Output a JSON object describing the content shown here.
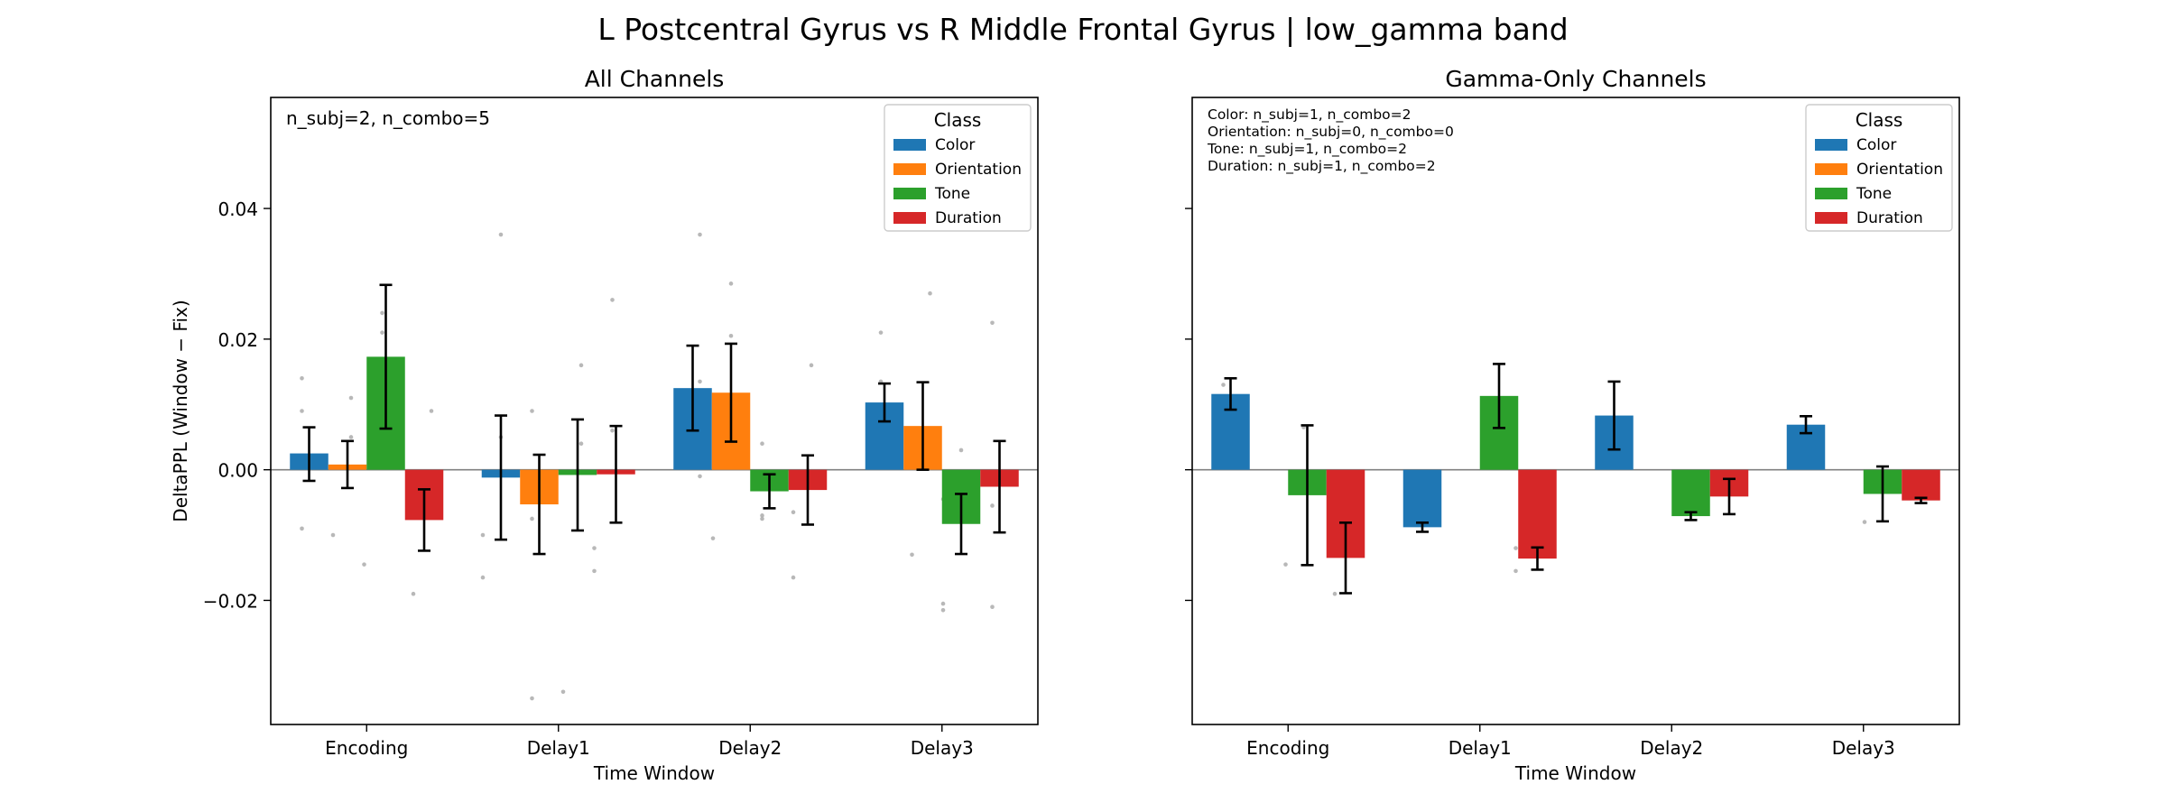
{
  "figure": {
    "suptitle": "L Postcentral Gyrus vs R Middle Frontal Gyrus  |  low_gamma band"
  },
  "colors": {
    "Color": "#1f77b4",
    "Orientation": "#ff7f0e",
    "Tone": "#2ca02c",
    "Duration": "#d62728",
    "scatter": "#b0b0b0",
    "zero_line": "#808080"
  },
  "chart_data": [
    {
      "type": "bar",
      "title": "All Channels",
      "xlabel": "Time Window",
      "ylabel": "DeltaPPL (Window − Fix)",
      "ylim": [
        -0.039,
        0.057
      ],
      "yticks": [
        -0.02,
        0.0,
        0.02,
        0.04
      ],
      "ytick_labels": [
        "−0.02",
        "0.00",
        "0.02",
        "0.04"
      ],
      "show_ytick_labels": true,
      "categories": [
        "Encoding",
        "Delay1",
        "Delay2",
        "Delay3"
      ],
      "legend": {
        "title": "Class",
        "placement": "upper right"
      },
      "annotation": [
        "n_subj=2, n_combo=5"
      ],
      "annotation_size": "large",
      "series": [
        {
          "name": "Color",
          "values": [
            0.0025,
            -0.0012,
            0.0125,
            0.0103
          ],
          "err_low": [
            -0.0017,
            -0.0107,
            0.006,
            0.0074
          ],
          "err_high": [
            0.0065,
            0.0083,
            0.019,
            0.0132
          ]
        },
        {
          "name": "Orientation",
          "values": [
            0.0008,
            -0.0053,
            0.0118,
            0.0067
          ],
          "err_low": [
            -0.0028,
            -0.0129,
            0.0043,
            0.0
          ],
          "err_high": [
            0.0044,
            0.0023,
            0.0193,
            0.0134
          ]
        },
        {
          "name": "Tone",
          "values": [
            0.0173,
            -0.0008,
            -0.0033,
            -0.0083
          ],
          "err_low": [
            0.0063,
            -0.0093,
            -0.0059,
            -0.0129
          ],
          "err_high": [
            0.0283,
            0.0077,
            -0.0007,
            -0.0037
          ]
        },
        {
          "name": "Duration",
          "values": [
            -0.0077,
            -0.0007,
            -0.0031,
            -0.0026
          ],
          "err_low": [
            -0.0124,
            -0.0081,
            -0.0084,
            -0.0096
          ],
          "err_high": [
            -0.003,
            0.0067,
            0.0022,
            0.0044
          ]
        }
      ],
      "scatter_points": [
        [
          0,
          0,
          -0.009
        ],
        [
          0,
          0,
          0.014
        ],
        [
          0,
          0,
          0.009
        ],
        [
          0,
          1,
          0.005
        ],
        [
          0,
          1,
          -0.01
        ],
        [
          0,
          1,
          0.011
        ],
        [
          0,
          2,
          0.024
        ],
        [
          0,
          2,
          0.009
        ],
        [
          0,
          2,
          0.021
        ],
        [
          0,
          2,
          -0.0145
        ],
        [
          0,
          3,
          0.009
        ],
        [
          0,
          3,
          -0.019
        ],
        [
          0,
          3,
          -0.005
        ],
        [
          1,
          0,
          0.036
        ],
        [
          1,
          0,
          -0.0165
        ],
        [
          1,
          0,
          -0.01
        ],
        [
          1,
          0,
          0.005
        ],
        [
          1,
          1,
          -0.035
        ],
        [
          1,
          1,
          0.009
        ],
        [
          1,
          1,
          -0.0075
        ],
        [
          1,
          2,
          -0.034
        ],
        [
          1,
          2,
          0.016
        ],
        [
          1,
          2,
          0.004
        ],
        [
          1,
          3,
          0.026
        ],
        [
          1,
          3,
          -0.012
        ],
        [
          1,
          3,
          -0.0155
        ],
        [
          1,
          3,
          0.006
        ],
        [
          2,
          0,
          0.036
        ],
        [
          2,
          0,
          -0.001
        ],
        [
          2,
          0,
          0.0135
        ],
        [
          2,
          0,
          0.0035
        ],
        [
          2,
          1,
          0.0285
        ],
        [
          2,
          1,
          0.0205
        ],
        [
          2,
          1,
          -0.0105
        ],
        [
          2,
          1,
          0.0055
        ],
        [
          2,
          2,
          0.004
        ],
        [
          2,
          2,
          -0.007
        ],
        [
          2,
          2,
          -0.0075
        ],
        [
          2,
          3,
          0.016
        ],
        [
          2,
          3,
          -0.0165
        ],
        [
          2,
          3,
          -0.0065
        ],
        [
          3,
          0,
          0.021
        ],
        [
          3,
          0,
          0.0135
        ],
        [
          3,
          0,
          0.0055
        ],
        [
          3,
          1,
          0.027
        ],
        [
          3,
          1,
          -0.013
        ],
        [
          3,
          1,
          0.0055
        ],
        [
          3,
          2,
          -0.0215
        ],
        [
          3,
          2,
          0.003
        ],
        [
          3,
          2,
          -0.0045
        ],
        [
          3,
          2,
          -0.0205
        ],
        [
          3,
          3,
          0.0225
        ],
        [
          3,
          3,
          -0.021
        ],
        [
          3,
          3,
          -0.0055
        ]
      ]
    },
    {
      "type": "bar",
      "title": "Gamma-Only Channels",
      "xlabel": "Time Window",
      "ylabel": "",
      "ylim": [
        -0.039,
        0.057
      ],
      "yticks": [
        -0.02,
        0.0,
        0.02,
        0.04
      ],
      "ytick_labels": [
        "",
        "",
        "",
        ""
      ],
      "show_ytick_labels": false,
      "categories": [
        "Encoding",
        "Delay1",
        "Delay2",
        "Delay3"
      ],
      "legend": {
        "title": "Class",
        "placement": "upper right"
      },
      "annotation": [
        "Color: n_subj=1, n_combo=2",
        "Orientation: n_subj=0, n_combo=0",
        "Tone: n_subj=1, n_combo=2",
        "Duration: n_subj=1, n_combo=2"
      ],
      "annotation_size": "small",
      "series": [
        {
          "name": "Color",
          "values": [
            0.0116,
            -0.0088,
            0.0083,
            0.0069
          ],
          "err_low": [
            0.0092,
            -0.0095,
            0.0031,
            0.0056
          ],
          "err_high": [
            0.014,
            -0.0081,
            0.0135,
            0.0082
          ]
        },
        {
          "name": "Orientation",
          "values": [
            null,
            null,
            null,
            null
          ],
          "err_low": [
            null,
            null,
            null,
            null
          ],
          "err_high": [
            null,
            null,
            null,
            null
          ]
        },
        {
          "name": "Tone",
          "values": [
            -0.0039,
            0.0113,
            -0.0071,
            -0.0037
          ],
          "err_low": [
            -0.0146,
            0.0064,
            -0.0077,
            -0.0079
          ],
          "err_high": [
            0.0068,
            0.0162,
            -0.0065,
            0.0005
          ]
        },
        {
          "name": "Duration",
          "values": [
            -0.0135,
            -0.0136,
            -0.0041,
            -0.0047
          ],
          "err_low": [
            -0.0189,
            -0.0153,
            -0.0068,
            -0.0051
          ],
          "err_high": [
            -0.0081,
            -0.0119,
            -0.0014,
            -0.0043
          ]
        }
      ],
      "scatter_points": [
        [
          0,
          0,
          0.01
        ],
        [
          0,
          0,
          0.013
        ],
        [
          0,
          2,
          0.0065
        ],
        [
          0,
          2,
          -0.0145
        ],
        [
          0,
          3,
          -0.019
        ],
        [
          0,
          3,
          -0.0085
        ],
        [
          1,
          3,
          -0.0155
        ],
        [
          1,
          3,
          -0.012
        ],
        [
          3,
          2,
          -0.0005
        ],
        [
          3,
          2,
          -0.008
        ]
      ]
    }
  ]
}
